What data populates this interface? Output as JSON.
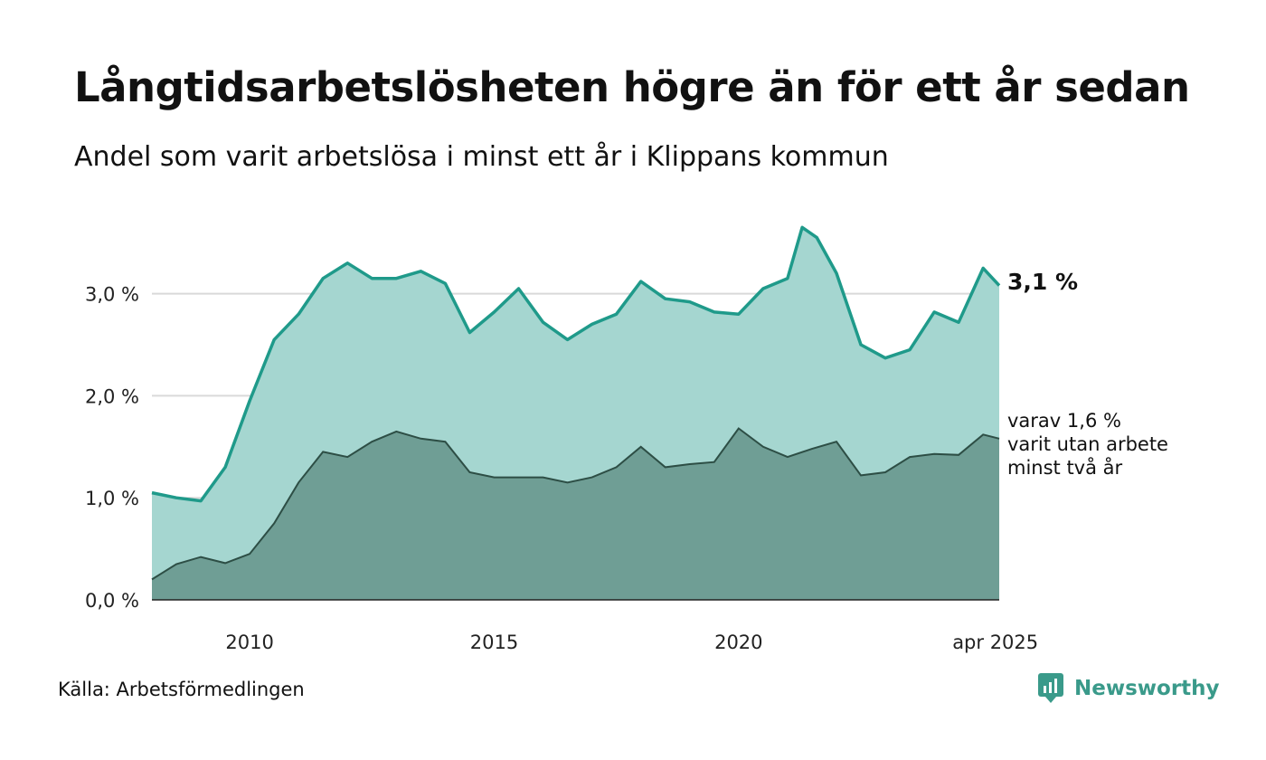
{
  "title": "Långtidsarbetslösheten högre än för ett år sedan",
  "subtitle": "Andel som varit arbetslösa i minst ett år i Klippans kommun",
  "source": "Källa: Arbetsförmedlingen",
  "brand": "Newsworthy",
  "colors": {
    "upper_fill": "#a5d6d0",
    "upper_line": "#1f9a8a",
    "lower_fill": "#6f9e95",
    "lower_line": "#2d4e45",
    "grid": "#d9d9d9",
    "brand": "#3a9a8a"
  },
  "chart_data": {
    "type": "area",
    "y_ticks": [
      "0,0 %",
      "1,0 %",
      "2,0 %",
      "3,0 %"
    ],
    "y_tick_values": [
      0,
      1,
      2,
      3
    ],
    "ylim": [
      0,
      3.75
    ],
    "x_ticks": [
      "2010",
      "2015",
      "2020",
      "apr 2025"
    ],
    "x_tick_values": [
      2010.0,
      2015.0,
      2020.0,
      2025.25
    ],
    "xlim": [
      2008.0,
      2025.33
    ],
    "grid": true,
    "end_label_main": "3,1 %",
    "end_label_sub": [
      "varav 1,6 %",
      "varit utan arbete",
      "minst två år"
    ],
    "series": [
      {
        "key": "min1",
        "x": [
          2008.0,
          2008.5,
          2009.0,
          2009.5,
          2010.0,
          2010.5,
          2011.0,
          2011.5,
          2012.0,
          2012.5,
          2013.0,
          2013.5,
          2014.0,
          2014.5,
          2015.0,
          2015.5,
          2016.0,
          2016.5,
          2017.0,
          2017.5,
          2018.0,
          2018.5,
          2019.0,
          2019.5,
          2020.0,
          2020.5,
          2021.0,
          2021.3,
          2021.6,
          2022.0,
          2022.5,
          2023.0,
          2023.5,
          2024.0,
          2024.5,
          2025.0,
          2025.33
        ],
        "values": [
          1.05,
          1.0,
          0.97,
          1.3,
          1.95,
          2.55,
          2.8,
          3.15,
          3.3,
          3.15,
          3.15,
          3.22,
          3.1,
          2.62,
          2.82,
          3.05,
          2.72,
          2.55,
          2.7,
          2.8,
          3.12,
          2.95,
          2.92,
          2.82,
          2.8,
          3.05,
          3.15,
          3.65,
          3.55,
          3.2,
          2.5,
          2.37,
          2.45,
          2.82,
          2.72,
          3.25,
          3.08
        ]
      },
      {
        "key": "min2",
        "x": [
          2008.0,
          2008.5,
          2009.0,
          2009.5,
          2010.0,
          2010.5,
          2011.0,
          2011.5,
          2012.0,
          2012.5,
          2013.0,
          2013.5,
          2014.0,
          2014.5,
          2015.0,
          2015.5,
          2016.0,
          2016.5,
          2017.0,
          2017.5,
          2018.0,
          2018.5,
          2019.0,
          2019.5,
          2020.0,
          2020.5,
          2021.0,
          2021.5,
          2022.0,
          2022.5,
          2023.0,
          2023.5,
          2024.0,
          2024.5,
          2025.0,
          2025.33
        ],
        "values": [
          0.2,
          0.35,
          0.42,
          0.36,
          0.45,
          0.75,
          1.15,
          1.45,
          1.4,
          1.55,
          1.65,
          1.58,
          1.55,
          1.25,
          1.2,
          1.2,
          1.2,
          1.15,
          1.2,
          1.3,
          1.5,
          1.3,
          1.33,
          1.35,
          1.68,
          1.5,
          1.4,
          1.48,
          1.55,
          1.22,
          1.25,
          1.4,
          1.43,
          1.42,
          1.62,
          1.58
        ]
      }
    ]
  }
}
